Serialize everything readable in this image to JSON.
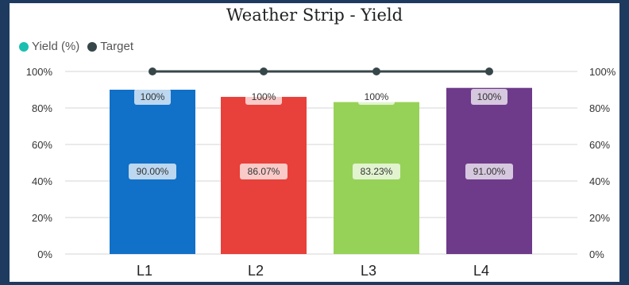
{
  "chart_data": {
    "type": "bar",
    "title": "Weather Strip - Yield",
    "categories": [
      "L1",
      "L2",
      "L3",
      "L4"
    ],
    "series": [
      {
        "name": "Yield (%)",
        "type": "bar",
        "values": [
          90.0,
          86.07,
          83.23,
          91.0
        ],
        "labels": [
          "90.00%",
          "86.07%",
          "83.23%",
          "91.00%"
        ]
      },
      {
        "name": "Target",
        "type": "line",
        "values": [
          100,
          100,
          100,
          100
        ],
        "labels": [
          "100%",
          "100%",
          "100%",
          "100%"
        ]
      }
    ],
    "bar_colors": [
      "#1170c7",
      "#e8403a",
      "#97d258",
      "#6e3a8a"
    ],
    "legend_colors": {
      "yield": "#1bbfb0",
      "target": "#374649"
    },
    "yticks": [
      "0%",
      "20%",
      "40%",
      "60%",
      "80%",
      "100%"
    ],
    "ylim": [
      0,
      100
    ],
    "legend_position": "top-left",
    "grid": true
  }
}
